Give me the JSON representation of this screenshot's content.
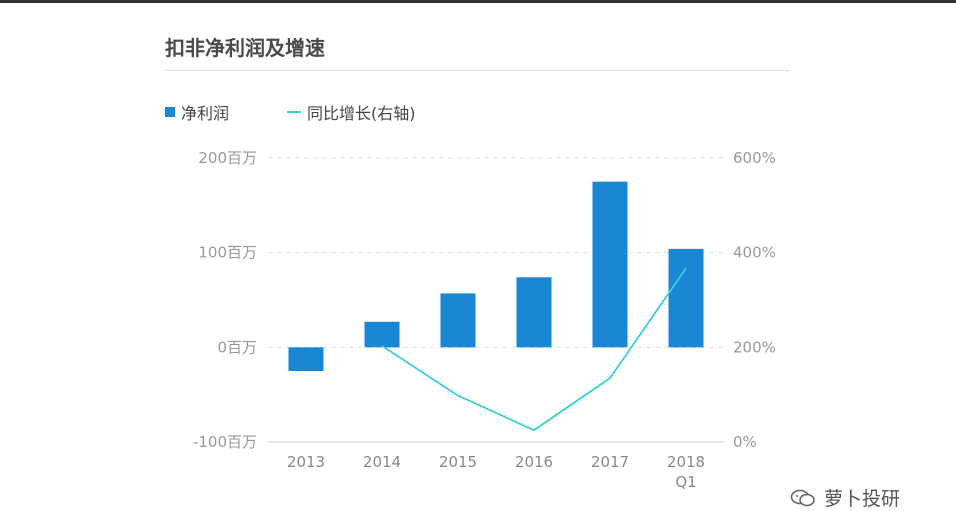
{
  "chart_data": {
    "type": "bar",
    "title": "扣非净利润及增速",
    "categories": [
      "2013",
      "2014",
      "2015",
      "2016",
      "2017",
      "2018\nQ1"
    ],
    "series": [
      {
        "name": "净利润",
        "type": "bar",
        "axis": "left",
        "color": "#1a87d4",
        "values": [
          -25,
          27,
          57,
          74,
          175,
          104
        ]
      },
      {
        "name": "同比增长(右轴)",
        "type": "line",
        "axis": "right",
        "color": "#3ccfd6",
        "values": [
          null,
          203,
          98,
          25,
          135,
          367
        ]
      }
    ],
    "y_left": {
      "range": [
        -100,
        200
      ],
      "ticks": [
        200,
        100,
        0,
        -100
      ],
      "tick_labels": [
        "200百万",
        "100百万",
        "0百万",
        "-100百万"
      ]
    },
    "y_right": {
      "range": [
        0,
        600
      ],
      "ticks": [
        600,
        400,
        200,
        0
      ],
      "tick_labels": [
        "600%",
        "400%",
        "200%",
        "0%"
      ]
    },
    "grid": "horizontal-dashed",
    "legend_position": "top-left"
  },
  "watermark": {
    "text": "萝卜投研",
    "icon": "wechat-icon"
  }
}
